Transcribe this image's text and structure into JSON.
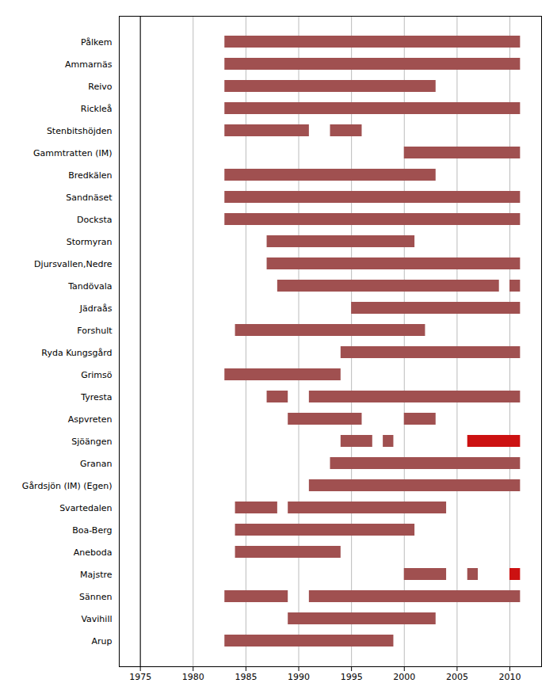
{
  "chart_data": {
    "type": "timeline",
    "orientation": "horizontal",
    "categories": [
      "Pålkem",
      "Ammarnäs",
      "Reivo",
      "Rickleå",
      "Stenbitshöjden",
      "Gammtratten (IM)",
      "Bredkälen",
      "Sandnäset",
      "Docksta",
      "Stormyran",
      "Djursvallen,Nedre",
      "Tandövala",
      "Jädraås",
      "Forshult",
      "Ryda Kungsgård",
      "Grimsö",
      "Tyresta",
      "Aspvreten",
      "Sjöängen",
      "Granan",
      "Gårdsjön (IM) (Egen)",
      "Svartedalen",
      "Boa-Berg",
      "Aneboda",
      "Majstre",
      "Sännen",
      "Vavihill",
      "Arup"
    ],
    "segments": [
      [
        {
          "start": 1983,
          "end": 2011,
          "color": "#a05050"
        }
      ],
      [
        {
          "start": 1983,
          "end": 2011,
          "color": "#a05050"
        }
      ],
      [
        {
          "start": 1983,
          "end": 2003,
          "color": "#a05050"
        }
      ],
      [
        {
          "start": 1983,
          "end": 2011,
          "color": "#a05050"
        }
      ],
      [
        {
          "start": 1983,
          "end": 1991,
          "color": "#a05050"
        },
        {
          "start": 1993,
          "end": 1996,
          "color": "#a05050"
        }
      ],
      [
        {
          "start": 2000,
          "end": 2011,
          "color": "#a05050"
        }
      ],
      [
        {
          "start": 1983,
          "end": 2003,
          "color": "#a05050"
        }
      ],
      [
        {
          "start": 1983,
          "end": 2011,
          "color": "#a05050"
        }
      ],
      [
        {
          "start": 1983,
          "end": 2011,
          "color": "#a05050"
        }
      ],
      [
        {
          "start": 1987,
          "end": 2001,
          "color": "#a05050"
        }
      ],
      [
        {
          "start": 1987,
          "end": 2011,
          "color": "#a05050"
        }
      ],
      [
        {
          "start": 1988,
          "end": 2009,
          "color": "#a05050"
        },
        {
          "start": 2010,
          "end": 2011,
          "color": "#a05050"
        }
      ],
      [
        {
          "start": 1995,
          "end": 2011,
          "color": "#a05050"
        }
      ],
      [
        {
          "start": 1984,
          "end": 2002,
          "color": "#a05050"
        }
      ],
      [
        {
          "start": 1994,
          "end": 2011,
          "color": "#a05050"
        }
      ],
      [
        {
          "start": 1983,
          "end": 1994,
          "color": "#a05050"
        }
      ],
      [
        {
          "start": 1987,
          "end": 1989,
          "color": "#a05050"
        },
        {
          "start": 1991,
          "end": 2011,
          "color": "#a05050"
        }
      ],
      [
        {
          "start": 1989,
          "end": 1996,
          "color": "#a05050"
        },
        {
          "start": 2000,
          "end": 2003,
          "color": "#a05050"
        }
      ],
      [
        {
          "start": 1994,
          "end": 1997,
          "color": "#a05050"
        },
        {
          "start": 1998,
          "end": 1999,
          "color": "#a05050"
        },
        {
          "start": 2006,
          "end": 2011,
          "color": "#cc1111"
        }
      ],
      [
        {
          "start": 1993,
          "end": 2011,
          "color": "#a05050"
        }
      ],
      [
        {
          "start": 1991,
          "end": 2011,
          "color": "#a05050"
        }
      ],
      [
        {
          "start": 1984,
          "end": 1988,
          "color": "#a05050"
        },
        {
          "start": 1989,
          "end": 2004,
          "color": "#a05050"
        }
      ],
      [
        {
          "start": 1984,
          "end": 2001,
          "color": "#a05050"
        }
      ],
      [
        {
          "start": 1984,
          "end": 1994,
          "color": "#a05050"
        }
      ],
      [
        {
          "start": 2000,
          "end": 2004,
          "color": "#a05050"
        },
        {
          "start": 2006,
          "end": 2007,
          "color": "#a05050"
        },
        {
          "start": 2010,
          "end": 2011,
          "color": "#cc1111"
        }
      ],
      [
        {
          "start": 1983,
          "end": 1989,
          "color": "#a05050"
        },
        {
          "start": 1991,
          "end": 2011,
          "color": "#a05050"
        }
      ],
      [
        {
          "start": 1989,
          "end": 2003,
          "color": "#a05050"
        }
      ],
      [
        {
          "start": 1983,
          "end": 1999,
          "color": "#a05050"
        }
      ]
    ],
    "xlim": [
      1973,
      2013
    ],
    "xticks": [
      1975,
      1980,
      1985,
      1990,
      1995,
      2000,
      2005,
      2010
    ],
    "reference_line_x": 1975,
    "grid": true
  }
}
